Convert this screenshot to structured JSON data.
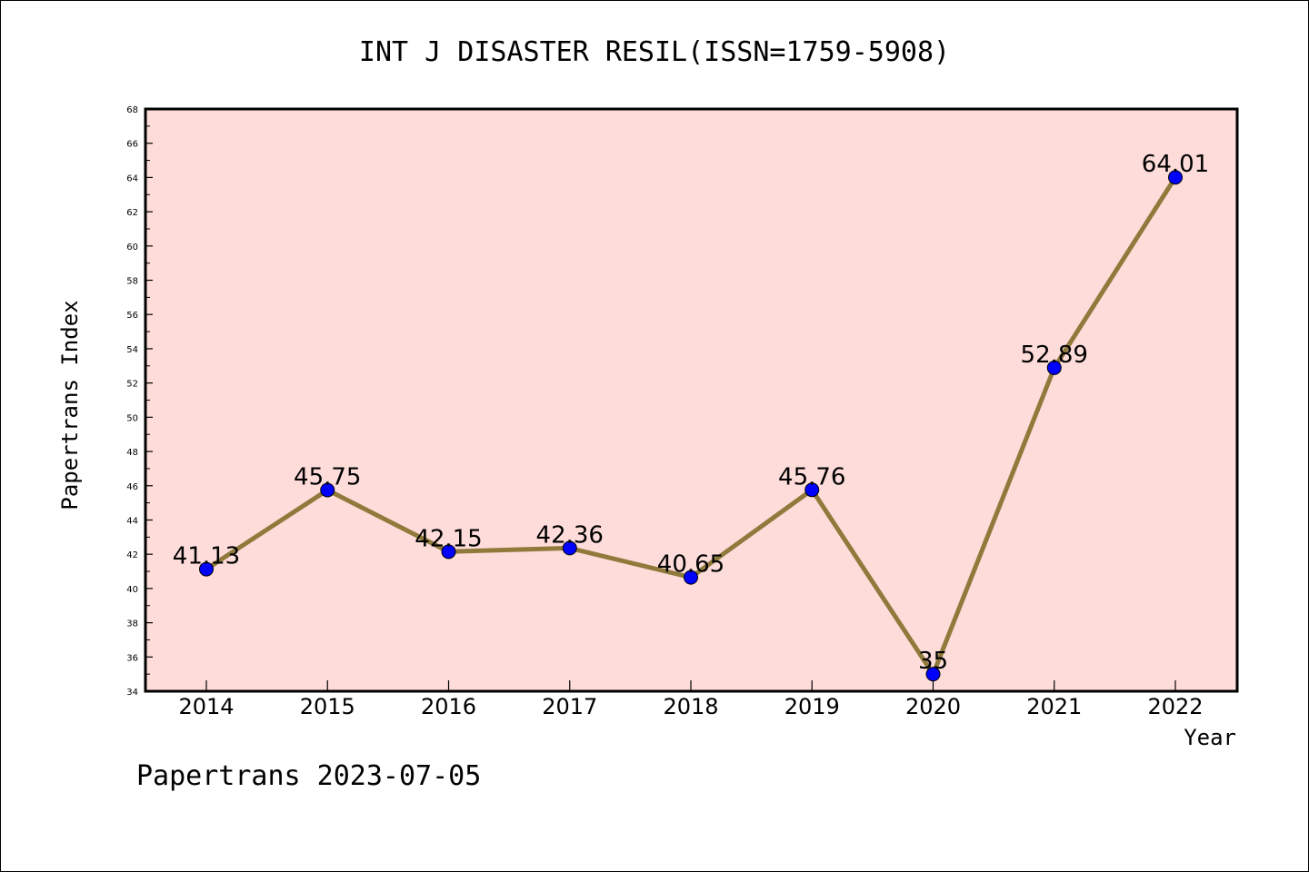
{
  "chart_data": {
    "type": "line",
    "title": "INT J DISASTER RESIL(ISSN=1759-5908)",
    "xlabel": "Year",
    "ylabel": "Papertrans Index",
    "categories": [
      "2014",
      "2015",
      "2016",
      "2017",
      "2018",
      "2019",
      "2020",
      "2021",
      "2022"
    ],
    "values": [
      41.13,
      45.75,
      42.15,
      42.36,
      40.65,
      45.76,
      35,
      52.89,
      64.01
    ],
    "data_labels": [
      "41.13",
      "45.75",
      "42.15",
      "42.36",
      "40.65",
      "45.76",
      "35",
      "52.89",
      "64.01"
    ],
    "ylim": [
      34,
      68
    ],
    "yticks": [
      "34",
      "36",
      "38",
      "40",
      "42",
      "44",
      "46",
      "48",
      "50",
      "52",
      "54",
      "56",
      "58",
      "60",
      "62",
      "64",
      "66",
      "68"
    ],
    "grid": false,
    "colors": {
      "plot_background": "#fddcda",
      "line": "#8f7a3c",
      "marker": "#0000ff",
      "axis": "#000000"
    }
  },
  "footer": {
    "text": "Papertrans 2023-07-05"
  }
}
